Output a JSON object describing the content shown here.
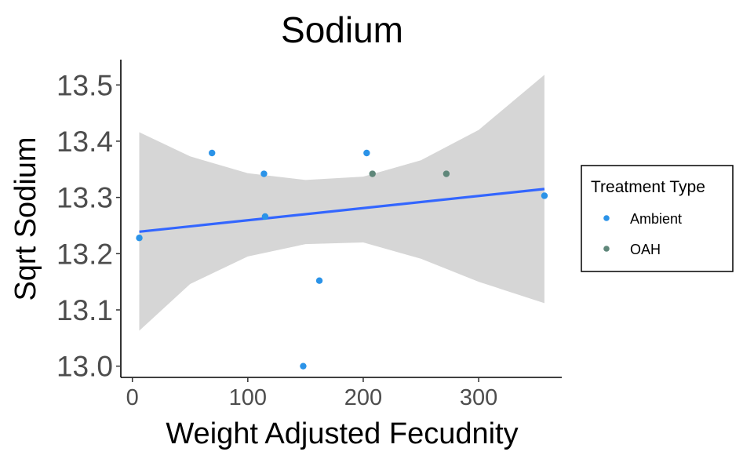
{
  "chart_data": {
    "type": "scatter",
    "title": "Sodium",
    "xlabel": "Weight Adjusted Fecudnity",
    "ylabel": "Sqrt Sodium",
    "xlim": [
      -10,
      372
    ],
    "ylim": [
      12.98,
      13.545
    ],
    "x_ticks": [
      0,
      100,
      200,
      300
    ],
    "y_ticks": [
      13.0,
      13.1,
      13.2,
      13.3,
      13.4,
      13.5
    ],
    "y_tick_labels": [
      "13.0",
      "13.1",
      "13.2",
      "13.3",
      "13.4",
      "13.5"
    ],
    "grid": false,
    "legend": {
      "title": "Treatment Type",
      "placement": "right",
      "entries": [
        {
          "label": "Ambient",
          "color": "#2b93e8"
        },
        {
          "label": "OAH",
          "color": "#5f877a"
        }
      ]
    },
    "series": [
      {
        "name": "Ambient",
        "color": "#2b93e8",
        "points": [
          {
            "x": 6,
            "y": 13.228
          },
          {
            "x": 69,
            "y": 13.379
          },
          {
            "x": 114,
            "y": 13.342
          },
          {
            "x": 115,
            "y": 13.266
          },
          {
            "x": 148,
            "y": 13.0
          },
          {
            "x": 162,
            "y": 13.152
          },
          {
            "x": 203,
            "y": 13.379
          },
          {
            "x": 357,
            "y": 13.303
          }
        ]
      },
      {
        "name": "OAH",
        "color": "#5f877a",
        "points": [
          {
            "x": 208,
            "y": 13.342
          },
          {
            "x": 272,
            "y": 13.342
          }
        ]
      }
    ],
    "fit": {
      "method": "linear",
      "color": "#3366ff",
      "ribbon_color": "#d6d6d6",
      "x_range": [
        6,
        357
      ],
      "y_at_start": 13.239,
      "y_at_end": 13.315,
      "ci_upper": [
        {
          "x": 6,
          "y": 13.416
        },
        {
          "x": 50,
          "y": 13.373
        },
        {
          "x": 100,
          "y": 13.343
        },
        {
          "x": 150,
          "y": 13.331
        },
        {
          "x": 200,
          "y": 13.337
        },
        {
          "x": 250,
          "y": 13.366
        },
        {
          "x": 300,
          "y": 13.42
        },
        {
          "x": 357,
          "y": 13.518
        }
      ],
      "ci_lower": [
        {
          "x": 6,
          "y": 13.063
        },
        {
          "x": 50,
          "y": 13.146
        },
        {
          "x": 100,
          "y": 13.195
        },
        {
          "x": 150,
          "y": 13.217
        },
        {
          "x": 200,
          "y": 13.22
        },
        {
          "x": 250,
          "y": 13.191
        },
        {
          "x": 300,
          "y": 13.15
        },
        {
          "x": 357,
          "y": 13.112
        }
      ]
    }
  }
}
